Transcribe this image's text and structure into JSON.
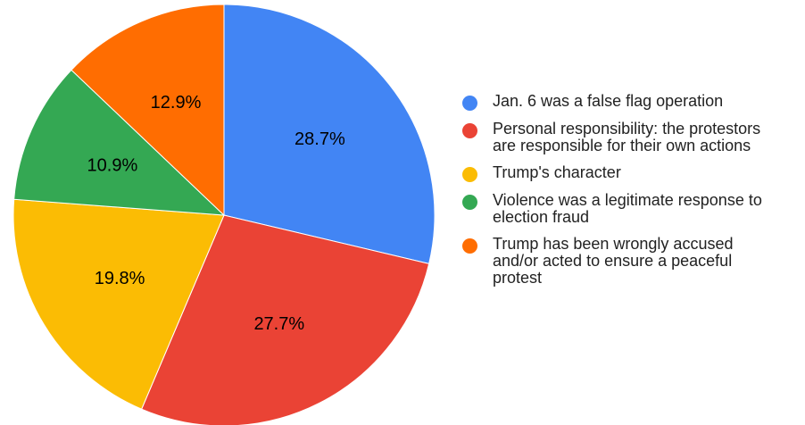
{
  "chart_data": {
    "type": "pie",
    "title": "",
    "legend_position": "right",
    "slices": [
      {
        "label": "Jan. 6 was a false flag operation",
        "value": 28.7,
        "value_label": "28.7%",
        "color": "#4285f4"
      },
      {
        "label": "Personal responsibility: the protestors\nare responsible for their own actions",
        "value": 27.7,
        "value_label": "27.7%",
        "color": "#ea4335"
      },
      {
        "label": "Trump's character",
        "value": 19.8,
        "value_label": "19.8%",
        "color": "#fbbc04"
      },
      {
        "label": "Violence was a legitimate response to\nelection fraud",
        "value": 10.9,
        "value_label": "10.9%",
        "color": "#34a853"
      },
      {
        "label": "Trump has been wrongly accused\nand/or acted to ensure a peaceful\nprotest",
        "value": 12.9,
        "value_label": "12.9%",
        "color": "#ff6d01"
      }
    ]
  }
}
